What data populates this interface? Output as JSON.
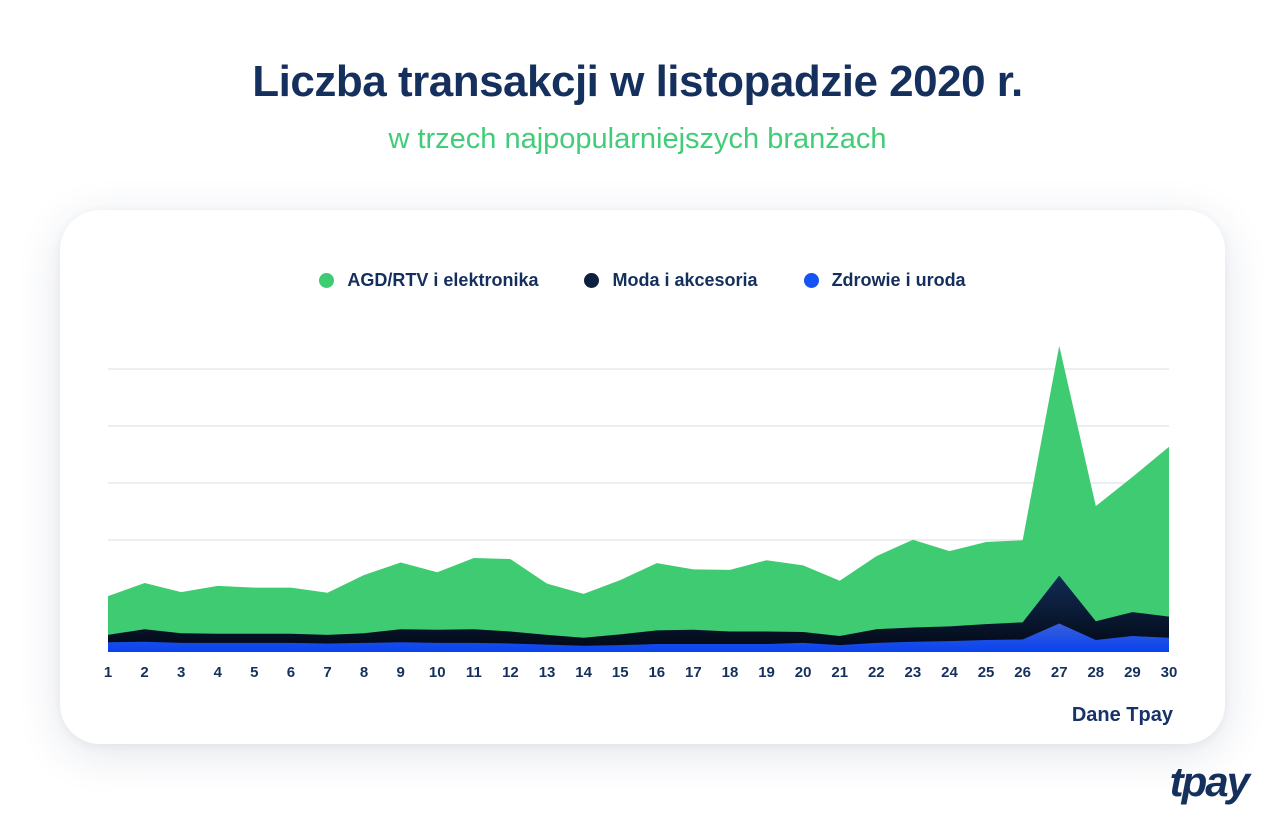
{
  "header": {
    "title": "Liczba transakcji w listopadzie 2020 r.",
    "subtitle": "w trzech najpopularniejszych branżach"
  },
  "legend": {
    "items": [
      {
        "label": "AGD/RTV i elektronika",
        "color": "#3ecb71"
      },
      {
        "label": "Moda i akcesoria",
        "color": "#0c2041"
      },
      {
        "label": "Zdrowie i uroda",
        "color": "#1453f5"
      }
    ]
  },
  "chart_data": {
    "type": "area",
    "stacked": true,
    "title": "Liczba transakcji w listopadzie 2020 r.",
    "subtitle": "w trzech najpopularniejszych branżach",
    "x": [
      1,
      2,
      3,
      4,
      5,
      6,
      7,
      8,
      9,
      10,
      11,
      12,
      13,
      14,
      15,
      16,
      17,
      18,
      19,
      20,
      21,
      22,
      23,
      24,
      25,
      26,
      27,
      28,
      29,
      30
    ],
    "x_tick_labels": [
      "1",
      "2",
      "3",
      "4",
      "5",
      "6",
      "7",
      "8",
      "9",
      "10",
      "11",
      "12",
      "13",
      "14",
      "15",
      "16",
      "17",
      "18",
      "19",
      "20",
      "21",
      "22",
      "23",
      "24",
      "25",
      "26",
      "27",
      "28",
      "29",
      "30"
    ],
    "y_axis": {
      "labels_visible": false,
      "unit": "gridline-interval (no numeric labels shown)",
      "gridline_values": [
        1,
        2,
        3,
        4
      ],
      "ylim": [
        0,
        5.65
      ],
      "grid": "horizontal-only"
    },
    "legend_position": "top-center",
    "series": [
      {
        "name": "Zdrowie i uroda",
        "stack_order": "bottom",
        "color": "#1453f5",
        "gradient_top": "#3f62d8",
        "gradient_bottom": "#0843ef",
        "values": [
          0.17,
          0.18,
          0.16,
          0.16,
          0.16,
          0.16,
          0.15,
          0.16,
          0.17,
          0.16,
          0.16,
          0.15,
          0.13,
          0.11,
          0.12,
          0.14,
          0.14,
          0.14,
          0.14,
          0.16,
          0.12,
          0.16,
          0.18,
          0.19,
          0.21,
          0.22,
          0.5,
          0.21,
          0.28,
          0.25
        ]
      },
      {
        "name": "Moda i akcesoria",
        "stack_order": "middle",
        "color": "#0c2041",
        "gradient_top": "#122c55",
        "gradient_bottom": "#020813",
        "values": [
          0.13,
          0.22,
          0.17,
          0.16,
          0.16,
          0.16,
          0.15,
          0.17,
          0.23,
          0.23,
          0.24,
          0.21,
          0.17,
          0.14,
          0.19,
          0.24,
          0.25,
          0.22,
          0.22,
          0.19,
          0.16,
          0.24,
          0.25,
          0.26,
          0.28,
          0.3,
          0.84,
          0.33,
          0.42,
          0.37
        ]
      },
      {
        "name": "AGD/RTV i elektronika",
        "stack_order": "top",
        "color": "#3ecb71",
        "values": [
          0.68,
          0.81,
          0.72,
          0.84,
          0.81,
          0.81,
          0.74,
          1.02,
          1.17,
          1.01,
          1.25,
          1.27,
          0.9,
          0.77,
          0.95,
          1.18,
          1.06,
          1.08,
          1.25,
          1.17,
          0.97,
          1.28,
          1.54,
          1.32,
          1.44,
          1.44,
          4.03,
          2.02,
          2.37,
          2.98
        ]
      }
    ]
  },
  "style": {
    "gridline_color": "#e7e9ee",
    "title_color": "#16305e",
    "subtitle_color": "#41cd77",
    "axis_label_color": "#16305e"
  },
  "footer": {
    "source": "Dane Tpay",
    "logo": "tpay"
  }
}
